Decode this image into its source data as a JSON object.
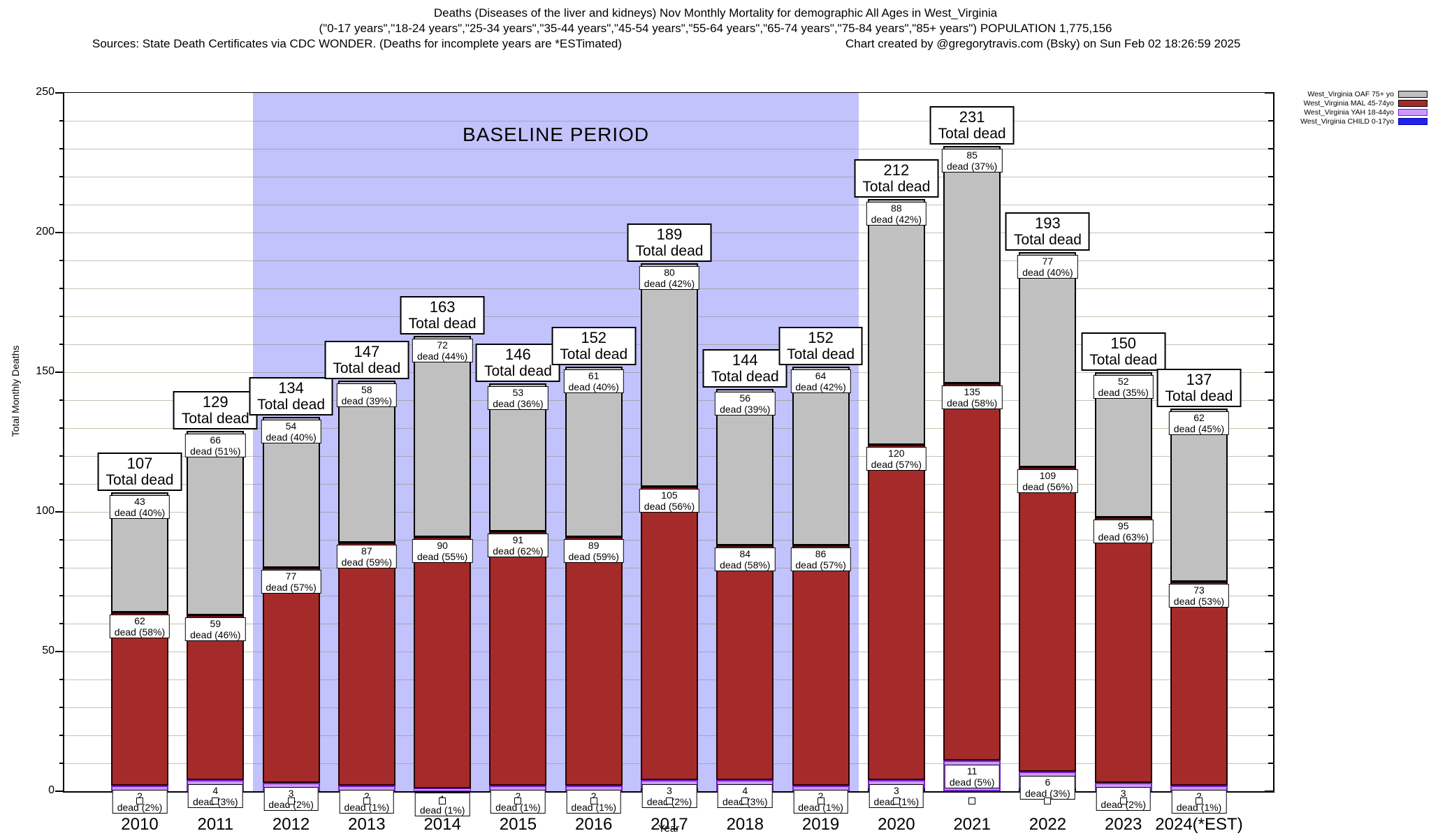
{
  "title": {
    "line1": "Deaths (Diseases of the liver and kidneys) Nov Monthly Mortality for demographic All Ages in West_Virginia",
    "line2": "(\"0-17 years\",\"18-24 years\",\"25-34 years\",\"35-44 years\",\"45-54 years\",\"55-64 years\",\"65-74 years\",\"75-84 years\",\"85+ years\") POPULATION 1,775,156",
    "line3_left": "Sources: State Death Certificates via CDC WONDER. (Deaths for incomplete years are *ESTimated)",
    "line3_right": "Chart created by @gregorytravis.com (Bsky) on Sun Feb 02 18:26:59 2025"
  },
  "labels": {
    "total_dead": "Total dead",
    "dead": "dead"
  },
  "legend": [
    {
      "label": "West_Virginia OAF 75+ yo",
      "fill": "#c0c0c0",
      "edge": "#000000"
    },
    {
      "label": "West_Virginia MAL 45-74yo",
      "fill": "#a52a2a",
      "edge": "#000000"
    },
    {
      "label": "West_Virginia YAH 18-44yo",
      "fill": "#cc99ff",
      "edge": "#7b1fd6"
    },
    {
      "label": "West_Virginia CHILD 0-17yo",
      "fill": "#2222ee",
      "edge": "#0000aa"
    }
  ],
  "chart_data": {
    "type": "bar",
    "stacked": true,
    "title": "Deaths (Diseases of the liver and kidneys) Nov Monthly Mortality for demographic All Ages in West_Virginia",
    "xlabel": "Year",
    "ylabel": "Total Monthly Deaths",
    "ylim": [
      0,
      250
    ],
    "yticks": [
      0,
      50,
      100,
      150,
      200,
      250
    ],
    "minor_grid_step": 10,
    "legend_position": "top-right",
    "baseline_region": {
      "label": "BASELINE PERIOD",
      "from": "2012",
      "to": "2019"
    },
    "colors": {
      "oaf_fill": "#c0c0c0",
      "oaf_edge": "#000000",
      "mal_fill": "#a52a2a",
      "mal_edge": "#240404",
      "yah_fill": "#cc99ff",
      "yah_edge": "#7b1fd6",
      "child_fill": "#2222ee",
      "child_edge": "#000000",
      "baseline_bg": "#c2c2fc"
    },
    "series_names": [
      "West_Virginia CHILD 0-17yo",
      "West_Virginia YAH 18-44yo",
      "West_Virginia MAL 45-74yo",
      "West_Virginia OAF 75+ yo"
    ],
    "bars": [
      {
        "year": "2010",
        "total": 107,
        "child": {
          "n": 0
        },
        "yah": {
          "n": 2,
          "pct": 2
        },
        "mal": {
          "n": 62,
          "pct": 58
        },
        "oaf": {
          "n": 43,
          "pct": 40
        }
      },
      {
        "year": "2011",
        "total": 129,
        "child": {
          "n": 0
        },
        "yah": {
          "n": 4,
          "pct": 3
        },
        "mal": {
          "n": 59,
          "pct": 46
        },
        "oaf": {
          "n": 66,
          "pct": 51
        }
      },
      {
        "year": "2012",
        "total": 134,
        "child": {
          "n": 0
        },
        "yah": {
          "n": 3,
          "pct": 2
        },
        "mal": {
          "n": 77,
          "pct": 57
        },
        "oaf": {
          "n": 54,
          "pct": 40
        }
      },
      {
        "year": "2013",
        "total": 147,
        "child": {
          "n": 0
        },
        "yah": {
          "n": 2,
          "pct": 1
        },
        "mal": {
          "n": 87,
          "pct": 59
        },
        "oaf": {
          "n": 58,
          "pct": 39
        }
      },
      {
        "year": "2014",
        "total": 163,
        "child": {
          "n": 0
        },
        "yah": {
          "n": 1,
          "pct": 1
        },
        "mal": {
          "n": 90,
          "pct": 55
        },
        "oaf": {
          "n": 72,
          "pct": 44
        }
      },
      {
        "year": "2015",
        "total": 146,
        "child": {
          "n": 0
        },
        "yah": {
          "n": 2,
          "pct": 1
        },
        "mal": {
          "n": 91,
          "pct": 62
        },
        "oaf": {
          "n": 53,
          "pct": 36
        }
      },
      {
        "year": "2016",
        "total": 152,
        "child": {
          "n": 0
        },
        "yah": {
          "n": 2,
          "pct": 1
        },
        "mal": {
          "n": 89,
          "pct": 59
        },
        "oaf": {
          "n": 61,
          "pct": 40
        }
      },
      {
        "year": "2017",
        "total": 189,
        "child": {
          "n": 1
        },
        "yah": {
          "n": 3,
          "pct": 2
        },
        "mal": {
          "n": 105,
          "pct": 56
        },
        "oaf": {
          "n": 80,
          "pct": 42
        }
      },
      {
        "year": "2018",
        "total": 144,
        "child": {
          "n": 0
        },
        "yah": {
          "n": 4,
          "pct": 3
        },
        "mal": {
          "n": 84,
          "pct": 58
        },
        "oaf": {
          "n": 56,
          "pct": 39
        }
      },
      {
        "year": "2019",
        "total": 152,
        "child": {
          "n": 0
        },
        "yah": {
          "n": 2,
          "pct": 1
        },
        "mal": {
          "n": 86,
          "pct": 57
        },
        "oaf": {
          "n": 64,
          "pct": 42
        }
      },
      {
        "year": "2020",
        "total": 212,
        "child": {
          "n": 1
        },
        "yah": {
          "n": 3,
          "pct": 1
        },
        "mal": {
          "n": 120,
          "pct": 57
        },
        "oaf": {
          "n": 88,
          "pct": 42
        }
      },
      {
        "year": "2021",
        "total": 231,
        "child": {
          "n": 0
        },
        "yah": {
          "n": 11,
          "pct": 5
        },
        "mal": {
          "n": 135,
          "pct": 58
        },
        "oaf": {
          "n": 85,
          "pct": 37
        }
      },
      {
        "year": "2022",
        "total": 193,
        "child": {
          "n": 1
        },
        "yah": {
          "n": 6,
          "pct": 3
        },
        "mal": {
          "n": 109,
          "pct": 56
        },
        "oaf": {
          "n": 77,
          "pct": 40
        }
      },
      {
        "year": "2023",
        "total": 150,
        "child": {
          "n": 0
        },
        "yah": {
          "n": 3,
          "pct": 2
        },
        "mal": {
          "n": 95,
          "pct": 63
        },
        "oaf": {
          "n": 52,
          "pct": 35
        }
      },
      {
        "year": "2024(*EST)",
        "total": 137,
        "child": {
          "n": 0
        },
        "yah": {
          "n": 2,
          "pct": 1
        },
        "mal": {
          "n": 73,
          "pct": 53
        },
        "oaf": {
          "n": 62,
          "pct": 45
        }
      }
    ]
  }
}
